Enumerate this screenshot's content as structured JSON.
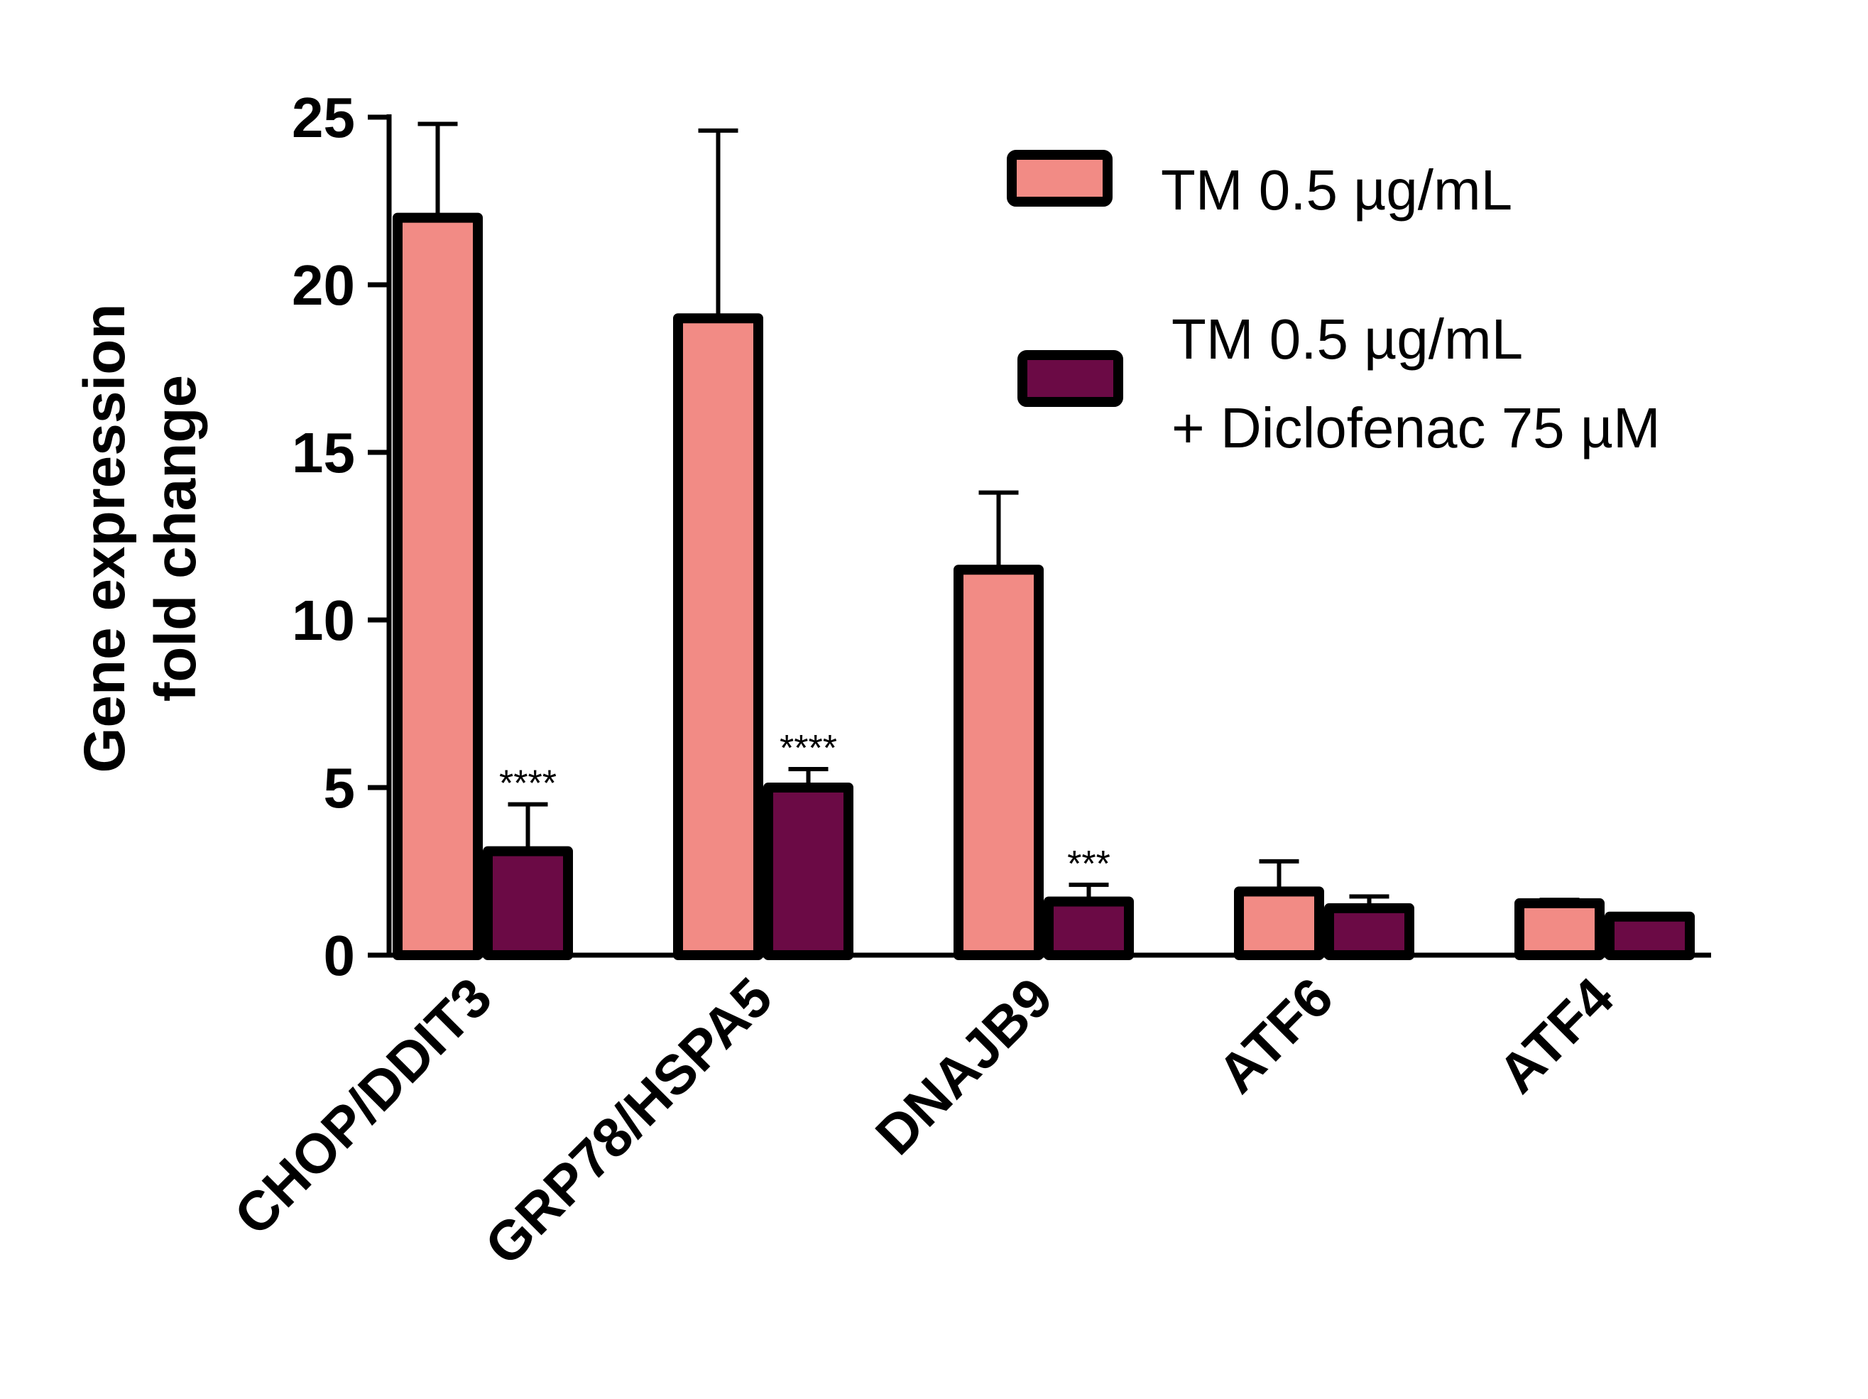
{
  "chart_data": {
    "type": "bar",
    "title": "",
    "xlabel": "",
    "ylabel_lines": [
      "Gene expression",
      "fold change"
    ],
    "ylim": [
      0,
      25
    ],
    "yticks": [
      "0",
      "5",
      "10",
      "15",
      "20",
      "25"
    ],
    "ytick_values": [
      0,
      5,
      10,
      15,
      20,
      25
    ],
    "categories": [
      "CHOP/DDIT3",
      "GRP78/HSPA5",
      "DNAJB9",
      "ATF6",
      "ATF4"
    ],
    "series": [
      {
        "name": "TM 0.5 µg/mL",
        "legend_lines": [
          "TM 0.5 µg/mL"
        ],
        "color": "#f28b85",
        "values": [
          22.0,
          19.0,
          11.5,
          1.9,
          1.55
        ],
        "errors": [
          2.8,
          5.6,
          2.3,
          0.9,
          0.1
        ]
      },
      {
        "name": "TM 0.5 µg/mL + Diclofenac 75 µM",
        "legend_lines": [
          "TM 0.5 µg/mL",
          "+ Diclofenac 75 µM"
        ],
        "color": "#6b0a45",
        "values": [
          3.1,
          5.0,
          1.6,
          1.4,
          1.15
        ],
        "errors": [
          1.4,
          0.55,
          0.5,
          0.35,
          0.0
        ]
      }
    ],
    "annotations": [
      "****",
      "****",
      "***",
      "",
      ""
    ],
    "legend_position": "top-right",
    "grid": false
  }
}
